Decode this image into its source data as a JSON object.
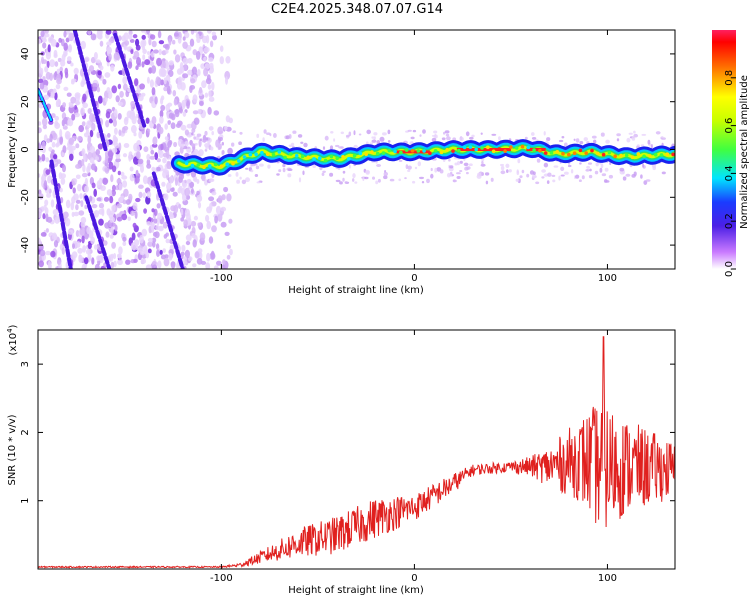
{
  "title": "C2E4.2025.348.07.07.G14",
  "colors": {
    "snr_line": "#e0201e",
    "track": "#ff2020",
    "background": "#ffffff"
  },
  "chart_data": [
    {
      "type": "heatmap",
      "name": "spectrogram",
      "xlabel": "Height of straight line (km)",
      "ylabel": "Frequency (Hz)",
      "xlim": [
        -195,
        135
      ],
      "ylim": [
        -50,
        50
      ],
      "x_ticks": [
        -100,
        0,
        100
      ],
      "y_ticks": [
        -40,
        -20,
        0,
        20,
        40
      ],
      "colorbar": {
        "label": "Normalized spectral amplitude",
        "range": [
          0,
          1
        ],
        "ticks": [
          0.0,
          0.2,
          0.4,
          0.6,
          0.8
        ]
      },
      "main_track": {
        "start_x": -122,
        "end_x": 135,
        "freq_center": [
          {
            "x": -122,
            "f": -6
          },
          {
            "x": -100,
            "f": -7
          },
          {
            "x": -80,
            "f": -1
          },
          {
            "x": -60,
            "f": -3
          },
          {
            "x": -40,
            "f": -4
          },
          {
            "x": -20,
            "f": -1
          },
          {
            "x": 0,
            "f": -1
          },
          {
            "x": 20,
            "f": 0
          },
          {
            "x": 40,
            "f": 0
          },
          {
            "x": 60,
            "f": 0.5
          },
          {
            "x": 75,
            "f": -2
          },
          {
            "x": 90,
            "f": -1
          },
          {
            "x": 110,
            "f": -3
          },
          {
            "x": 135,
            "f": -2
          }
        ]
      },
      "diagonal_streaks": [
        {
          "x1": -195,
          "f1": 25,
          "x2": -188,
          "f2": 12
        },
        {
          "x1": -188,
          "f1": -5,
          "x2": -178,
          "f2": -50
        },
        {
          "x1": -135,
          "f1": -10,
          "x2": -120,
          "f2": -50
        },
        {
          "x1": -155,
          "f1": 48,
          "x2": -140,
          "f2": 10
        },
        {
          "x1": -176,
          "f1": 50,
          "x2": -160,
          "f2": 0
        },
        {
          "x1": -170,
          "f1": -20,
          "x2": -158,
          "f2": -50
        }
      ]
    },
    {
      "type": "line",
      "name": "snr",
      "xlabel": "Height of straight line (km)",
      "ylabel": "SNR (10 * v/v)",
      "scale_label": "(x10",
      "scale_exp": "4",
      "xlim": [
        -195,
        135
      ],
      "ylim": [
        0,
        3.5
      ],
      "x_ticks": [
        -100,
        0,
        100
      ],
      "y_ticks": [
        1,
        2,
        3
      ],
      "envelope": [
        {
          "x": -195,
          "mean": 0.03,
          "amp": 0.01
        },
        {
          "x": -100,
          "mean": 0.03,
          "amp": 0.01
        },
        {
          "x": -90,
          "mean": 0.06,
          "amp": 0.03
        },
        {
          "x": -75,
          "mean": 0.22,
          "amp": 0.12
        },
        {
          "x": -60,
          "mean": 0.38,
          "amp": 0.22
        },
        {
          "x": -40,
          "mean": 0.5,
          "amp": 0.28
        },
        {
          "x": -20,
          "mean": 0.75,
          "amp": 0.3
        },
        {
          "x": 0,
          "mean": 0.9,
          "amp": 0.2
        },
        {
          "x": 20,
          "mean": 1.25,
          "amp": 0.15
        },
        {
          "x": 30,
          "mean": 1.45,
          "amp": 0.08
        },
        {
          "x": 50,
          "mean": 1.5,
          "amp": 0.08
        },
        {
          "x": 60,
          "mean": 1.5,
          "amp": 0.15
        },
        {
          "x": 70,
          "mean": 1.5,
          "amp": 0.3
        },
        {
          "x": 85,
          "mean": 1.6,
          "amp": 0.6
        },
        {
          "x": 97,
          "mean": 1.5,
          "amp": 1.0
        },
        {
          "x": 110,
          "mean": 1.5,
          "amp": 0.7
        },
        {
          "x": 135,
          "mean": 1.45,
          "amp": 0.4
        }
      ],
      "peak": {
        "x": 98,
        "y": 3.4
      }
    }
  ]
}
